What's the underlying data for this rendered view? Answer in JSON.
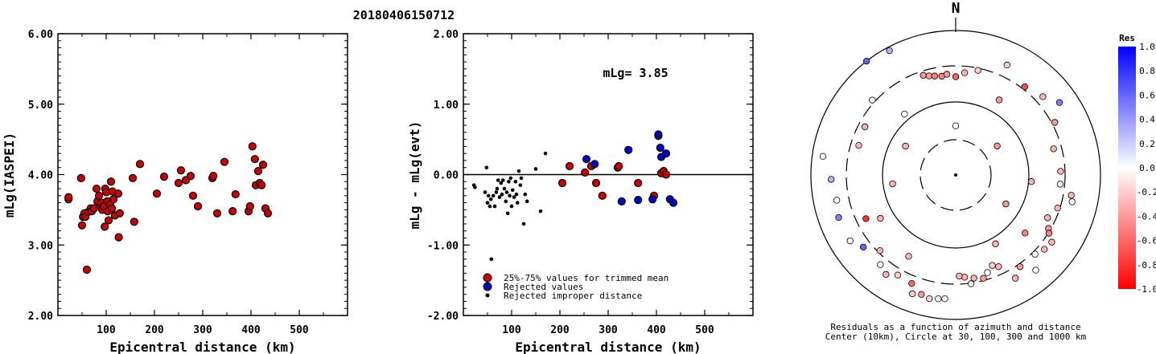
{
  "title": "20180406150712",
  "north_label": "N",
  "chart_data": [
    {
      "type": "scatter",
      "xlabel": "Epicentral distance (km)",
      "ylabel": "mLg(IASPEI)",
      "xlim": [
        0,
        600
      ],
      "ylim": [
        2,
        6
      ],
      "x_ticks": [
        "100",
        "200",
        "300",
        "400",
        "500"
      ],
      "y_ticks": [
        "2.00",
        "3.00",
        "4.00",
        "5.00",
        "6.00"
      ],
      "color": "#cc0000",
      "points": [
        [
          22,
          3.65
        ],
        [
          22,
          3.68
        ],
        [
          48,
          3.95
        ],
        [
          50,
          3.28
        ],
        [
          52,
          3.4
        ],
        [
          55,
          3.45
        ],
        [
          57,
          3.4
        ],
        [
          60,
          2.65
        ],
        [
          63,
          3.47
        ],
        [
          68,
          3.52
        ],
        [
          70,
          3.48
        ],
        [
          75,
          3.52
        ],
        [
          80,
          3.8
        ],
        [
          82,
          3.62
        ],
        [
          85,
          3.7
        ],
        [
          88,
          3.55
        ],
        [
          90,
          3.6
        ],
        [
          92,
          3.5
        ],
        [
          95,
          3.55
        ],
        [
          97,
          3.26
        ],
        [
          98,
          3.8
        ],
        [
          100,
          3.75
        ],
        [
          102,
          3.62
        ],
        [
          103,
          3.48
        ],
        [
          105,
          3.35
        ],
        [
          108,
          3.58
        ],
        [
          110,
          3.9
        ],
        [
          112,
          3.52
        ],
        [
          113,
          3.76
        ],
        [
          115,
          3.65
        ],
        [
          118,
          3.42
        ],
        [
          125,
          3.73
        ],
        [
          126,
          3.11
        ],
        [
          128,
          3.45
        ],
        [
          155,
          3.95
        ],
        [
          158,
          3.33
        ],
        [
          170,
          4.15
        ],
        [
          205,
          3.73
        ],
        [
          220,
          3.97
        ],
        [
          250,
          3.88
        ],
        [
          255,
          4.06
        ],
        [
          265,
          3.92
        ],
        [
          275,
          3.98
        ],
        [
          280,
          3.7
        ],
        [
          290,
          3.55
        ],
        [
          320,
          3.95
        ],
        [
          322,
          3.98
        ],
        [
          330,
          3.45
        ],
        [
          345,
          4.18
        ],
        [
          362,
          3.48
        ],
        [
          368,
          3.72
        ],
        [
          395,
          3.48
        ],
        [
          398,
          3.55
        ],
        [
          403,
          4.4
        ],
        [
          408,
          4.22
        ],
        [
          410,
          3.85
        ],
        [
          415,
          4.05
        ],
        [
          418,
          3.88
        ],
        [
          422,
          3.85
        ],
        [
          425,
          4.14
        ],
        [
          430,
          3.52
        ],
        [
          435,
          3.45
        ]
      ]
    },
    {
      "type": "scatter",
      "annotation": "mLg= 3.85",
      "xlabel": "Epicentral distance (km)",
      "ylabel": "mLg - mLg(evt)",
      "xlim": [
        0,
        600
      ],
      "ylim": [
        -2,
        2
      ],
      "x_ticks": [
        "100",
        "200",
        "300",
        "400",
        "500"
      ],
      "y_ticks": [
        "-2.00",
        "-1.00",
        "0.00",
        "1.00",
        "2.00"
      ],
      "zero_line": true,
      "legend_placement": "bottom-left",
      "series": [
        {
          "name": "25%-75% values for trimmed mean",
          "color": "#cc0000",
          "points": [
            [
              205,
              -0.12
            ],
            [
              220,
              0.12
            ],
            [
              252,
              0.03
            ],
            [
              265,
              0.12
            ],
            [
              275,
              -0.12
            ],
            [
              288,
              -0.3
            ],
            [
              320,
              0.1
            ],
            [
              322,
              0.12
            ],
            [
              362,
              -0.12
            ],
            [
              395,
              -0.3
            ],
            [
              404,
              0.55
            ],
            [
              410,
              0.02
            ],
            [
              415,
              0.05
            ],
            [
              420,
              0.0
            ]
          ]
        },
        {
          "name": "Rejected values",
          "color": "#0000cc",
          "points": [
            [
              255,
              0.22
            ],
            [
              272,
              0.15
            ],
            [
              328,
              -0.38
            ],
            [
              342,
              0.35
            ],
            [
              362,
              -0.36
            ],
            [
              392,
              -0.35
            ],
            [
              404,
              0.57
            ],
            [
              408,
              0.38
            ],
            [
              410,
              0.25
            ],
            [
              420,
              0.3
            ],
            [
              428,
              -0.35
            ],
            [
              435,
              -0.4
            ]
          ]
        },
        {
          "name": "Rejected improper distance",
          "color": "#000000",
          "points": [
            [
              22,
              -0.15
            ],
            [
              24,
              -0.18
            ],
            [
              45,
              -0.25
            ],
            [
              48,
              0.1
            ],
            [
              50,
              -0.4
            ],
            [
              52,
              -0.3
            ],
            [
              55,
              -0.45
            ],
            [
              57,
              -0.35
            ],
            [
              58,
              -1.2
            ],
            [
              62,
              -0.3
            ],
            [
              65,
              -0.45
            ],
            [
              68,
              -0.25
            ],
            [
              70,
              -0.2
            ],
            [
              72,
              -0.08
            ],
            [
              75,
              -0.32
            ],
            [
              78,
              -0.12
            ],
            [
              80,
              -0.28
            ],
            [
              82,
              -0.08
            ],
            [
              85,
              -0.2
            ],
            [
              88,
              -0.38
            ],
            [
              90,
              -0.25
            ],
            [
              92,
              -0.55
            ],
            [
              94,
              -0.1
            ],
            [
              96,
              -0.3
            ],
            [
              98,
              -0.05
            ],
            [
              100,
              -0.45
            ],
            [
              102,
              -0.22
            ],
            [
              105,
              -0.32
            ],
            [
              108,
              -0.1
            ],
            [
              110,
              -0.28
            ],
            [
              112,
              -0.4
            ],
            [
              115,
              0.05
            ],
            [
              118,
              -0.15
            ],
            [
              120,
              -0.05
            ],
            [
              125,
              -0.7
            ],
            [
              128,
              -0.28
            ],
            [
              132,
              -0.38
            ],
            [
              150,
              0.08
            ],
            [
              160,
              -0.52
            ],
            [
              170,
              0.3
            ]
          ]
        }
      ]
    },
    {
      "type": "scatter",
      "subtype": "polar",
      "caption": "Residuals as a function of azimuth and distance",
      "caption2": "Center (10km), Circle at 30, 100, 300 and 1000 km",
      "rings": [
        30,
        100,
        300,
        1000
      ],
      "colorbar_title": "Res",
      "colorbar_ticks": [
        "1.0",
        "0.8",
        "0.6",
        "0.4",
        "0.2",
        "0.0",
        "-0.2",
        "-0.4",
        "-0.6",
        "-0.8",
        "-1.0"
      ],
      "points": [
        [
          -175,
          2.72,
          0.0
        ],
        [
          -172,
          2.73,
          0.0
        ],
        [
          -168,
          2.75,
          -0.2
        ],
        [
          -164,
          2.72,
          -0.4
        ],
        [
          -160,
          2.75,
          -0.2
        ],
        [
          -158,
          2.62,
          -0.6
        ],
        [
          -150,
          2.6,
          -0.2
        ],
        [
          -145,
          2.68,
          -0.3
        ],
        [
          -140,
          2.62,
          0.0
        ],
        [
          -135,
          2.48,
          -0.3
        ],
        [
          -128,
          2.62,
          0.6
        ],
        [
          -122,
          2.72,
          0.0
        ],
        [
          -116,
          2.38,
          -0.8
        ],
        [
          -110,
          2.72,
          0.5
        ],
        [
          -102,
          2.68,
          0.0
        ],
        [
          -92,
          2.72,
          0.3
        ],
        [
          -82,
          2.85,
          0.0
        ],
        [
          -73,
          2.4,
          -0.3
        ],
        [
          -62,
          2.42,
          -0.3
        ],
        [
          -48,
          2.55,
          0.0
        ],
        [
          -38,
          3.0,
          0.6
        ],
        [
          -28,
          2.95,
          0.3
        ],
        [
          -18,
          2.45,
          -0.4
        ],
        [
          -15,
          2.42,
          -0.4
        ],
        [
          -12,
          2.4,
          -0.5
        ],
        [
          -8,
          2.38,
          -0.5
        ],
        [
          -5,
          2.4,
          -0.4
        ],
        [
          0,
          2.36,
          -0.6
        ],
        [
          5,
          2.42,
          -0.3
        ],
        [
          12,
          2.48,
          -0.2
        ],
        [
          25,
          2.68,
          -0.2
        ],
        [
          38,
          2.55,
          -0.7
        ],
        [
          48,
          2.62,
          -0.3
        ],
        [
          55,
          2.75,
          0.5
        ],
        [
          62,
          2.55,
          -0.4
        ],
        [
          75,
          2.4,
          -0.3
        ],
        [
          88,
          2.45,
          -0.3
        ],
        [
          95,
          2.45,
          0.0
        ],
        [
          100,
          2.62,
          -0.3
        ],
        [
          103,
          2.65,
          0.0
        ],
        [
          108,
          2.48,
          -0.3
        ],
        [
          115,
          2.4,
          -0.3
        ],
        [
          120,
          2.48,
          -0.4
        ],
        [
          122,
          2.52,
          -0.5
        ],
        [
          125,
          2.62,
          -0.3
        ],
        [
          130,
          2.6,
          -0.3
        ],
        [
          135,
          2.55,
          0.0
        ],
        [
          140,
          2.72,
          0.0
        ],
        [
          145,
          2.55,
          -0.4
        ],
        [
          150,
          2.65,
          -0.3
        ],
        [
          155,
          2.4,
          -0.3
        ],
        [
          158,
          2.35,
          -0.2
        ],
        [
          162,
          2.42,
          0.0
        ],
        [
          165,
          2.48,
          -0.4
        ],
        [
          170,
          2.45,
          -0.3
        ],
        [
          175,
          2.42,
          -0.3
        ],
        [
          178,
          2.4,
          -0.3
        ],
        [
          -98,
          1.88,
          -0.3
        ],
        [
          -150,
          2.3,
          -0.3
        ],
        [
          172,
          2.52,
          0.0
        ],
        [
          -120,
          2.2,
          -0.3
        ],
        [
          30,
          2.2,
          -0.4
        ],
        [
          -40,
          2.1,
          0.0
        ],
        [
          0,
          1.68,
          0.0
        ],
        [
          95,
          2.05,
          -0.3
        ],
        [
          130,
          2.25,
          -0.5
        ],
        [
          120,
          1.8,
          -0.4
        ],
        [
          55,
          1.7,
          -0.4
        ],
        [
          -60,
          1.8,
          -0.3
        ],
        [
          150,
          2.1,
          -0.3
        ]
      ]
    }
  ]
}
